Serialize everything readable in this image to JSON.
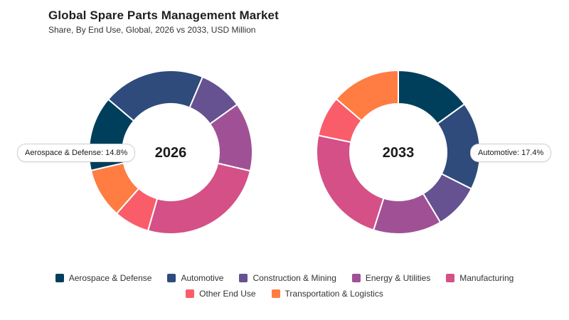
{
  "header": {
    "title": "Global Spare Parts Management Market",
    "subtitle": "Share, By End Use, Global, 2026 vs 2033, USD Million"
  },
  "chart_data": [
    {
      "type": "pie",
      "center_label": "2026",
      "categories": [
        "Aerospace & Defense",
        "Automotive",
        "Construction & Mining",
        "Energy & Utilities",
        "Manufacturing",
        "Other End Use",
        "Transportation & Logistics"
      ],
      "values": [
        14.8,
        20.2,
        8.7,
        13.6,
        25.8,
        7.0,
        9.9
      ],
      "tooltip": "Aerospace & Defense: 14.8%"
    },
    {
      "type": "pie",
      "center_label": "2033",
      "categories": [
        "Aerospace & Defense",
        "Automotive",
        "Construction & Mining",
        "Energy & Utilities",
        "Manufacturing",
        "Other End Use",
        "Transportation & Logistics"
      ],
      "values": [
        15.0,
        17.4,
        9.0,
        13.5,
        23.4,
        8.0,
        13.7
      ],
      "tooltip": "Automotive: 17.4%"
    }
  ],
  "legend": [
    {
      "label": "Aerospace & Defense",
      "color": "#003f5c"
    },
    {
      "label": "Automotive",
      "color": "#2f4b7c"
    },
    {
      "label": "Construction & Mining",
      "color": "#665191"
    },
    {
      "label": "Energy & Utilities",
      "color": "#a05195"
    },
    {
      "label": "Manufacturing",
      "color": "#d45087"
    },
    {
      "label": "Other End Use",
      "color": "#f95d6a"
    },
    {
      "label": "Transportation & Logistics",
      "color": "#ff7c43"
    }
  ]
}
